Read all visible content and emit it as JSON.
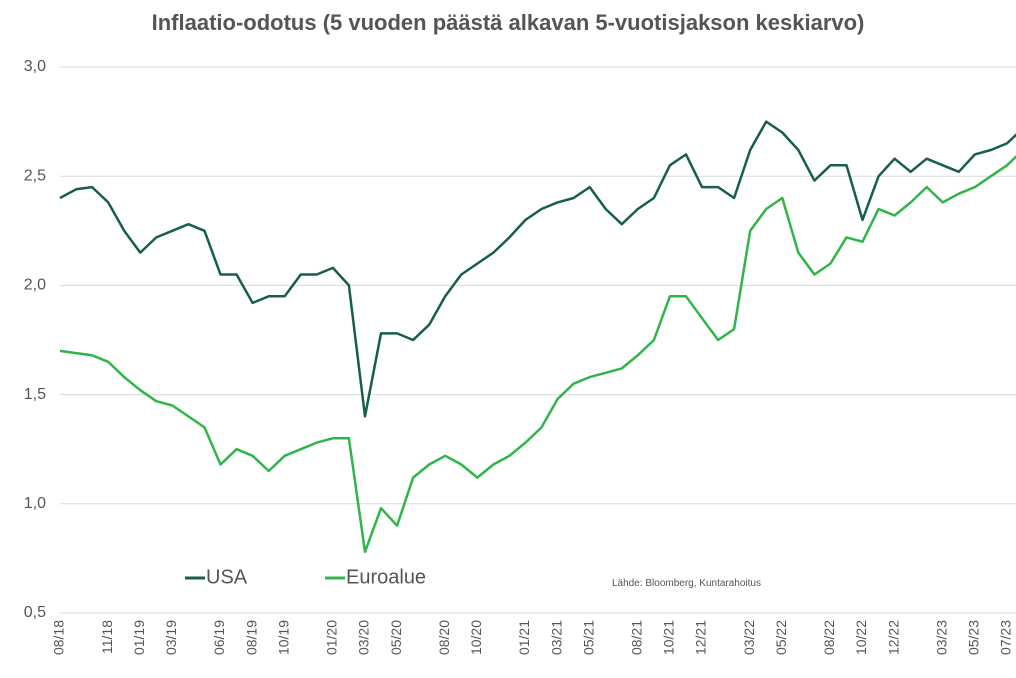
{
  "chart_data": {
    "type": "line",
    "title": "Inflaatio-odotus (5 vuoden päästä alkavan 5-vuotisjakson keskiarvo)",
    "source": "Lähde: Bloomberg, Kuntarahoitus",
    "x": [
      "08/18",
      "09/18",
      "10/18",
      "11/18",
      "12/18",
      "01/19",
      "02/19",
      "03/19",
      "04/19",
      "05/19",
      "06/19",
      "07/19",
      "08/19",
      "09/19",
      "10/19",
      "11/19",
      "12/19",
      "01/20",
      "02/20",
      "03/20",
      "04/20",
      "05/20",
      "06/20",
      "07/20",
      "08/20",
      "09/20",
      "10/20",
      "11/20",
      "12/20",
      "01/21",
      "02/21",
      "03/21",
      "04/21",
      "05/21",
      "06/21",
      "07/21",
      "08/21",
      "09/21",
      "10/21",
      "11/21",
      "12/21",
      "01/22",
      "02/22",
      "03/22",
      "04/22",
      "05/22",
      "06/22",
      "07/22",
      "08/22",
      "09/22",
      "10/22",
      "11/22",
      "12/22",
      "01/23",
      "02/23",
      "03/23",
      "04/23",
      "05/23",
      "06/23",
      "07/23",
      "08/23"
    ],
    "xticks": [
      "08/18",
      "11/18",
      "01/19",
      "03/19",
      "06/19",
      "08/19",
      "10/19",
      "01/20",
      "03/20",
      "05/20",
      "08/20",
      "10/20",
      "01/21",
      "03/21",
      "05/21",
      "08/21",
      "10/21",
      "12/21",
      "03/22",
      "05/22",
      "08/22",
      "10/22",
      "12/22",
      "03/23",
      "05/23",
      "07/23"
    ],
    "series": [
      {
        "name": "USA",
        "color": "#175e4c",
        "values": [
          2.4,
          2.44,
          2.45,
          2.38,
          2.25,
          2.15,
          2.22,
          2.25,
          2.28,
          2.25,
          2.05,
          2.05,
          1.92,
          1.95,
          1.95,
          2.05,
          2.05,
          2.08,
          2.0,
          1.4,
          1.78,
          1.78,
          1.75,
          1.82,
          1.95,
          2.05,
          2.1,
          2.15,
          2.22,
          2.3,
          2.35,
          2.38,
          2.4,
          2.45,
          2.35,
          2.28,
          2.35,
          2.4,
          2.55,
          2.6,
          2.45,
          2.45,
          2.4,
          2.62,
          2.75,
          2.7,
          2.62,
          2.48,
          2.55,
          2.55,
          2.3,
          2.5,
          2.58,
          2.52,
          2.58,
          2.55,
          2.52,
          2.6,
          2.62,
          2.65,
          2.72
        ]
      },
      {
        "name": "Euroalue",
        "color": "#2fb548",
        "values": [
          1.7,
          1.69,
          1.68,
          1.65,
          1.58,
          1.52,
          1.47,
          1.45,
          1.4,
          1.35,
          1.18,
          1.25,
          1.22,
          1.15,
          1.22,
          1.25,
          1.28,
          1.3,
          1.3,
          0.78,
          0.98,
          0.9,
          1.12,
          1.18,
          1.22,
          1.18,
          1.12,
          1.18,
          1.22,
          1.28,
          1.35,
          1.48,
          1.55,
          1.58,
          1.6,
          1.62,
          1.68,
          1.75,
          1.95,
          1.95,
          1.85,
          1.75,
          1.8,
          2.25,
          2.35,
          2.4,
          2.15,
          2.05,
          2.1,
          2.22,
          2.2,
          2.35,
          2.32,
          2.38,
          2.45,
          2.38,
          2.42,
          2.45,
          2.5,
          2.55,
          2.62
        ]
      }
    ],
    "ylim": [
      0.5,
      3.0
    ],
    "yticks": [
      {
        "value": 0.5,
        "label": "0,5"
      },
      {
        "value": 1.0,
        "label": "1,0"
      },
      {
        "value": 1.5,
        "label": "1,5"
      },
      {
        "value": 2.0,
        "label": "2,0"
      },
      {
        "value": 2.5,
        "label": "2,5"
      },
      {
        "value": 3.0,
        "label": "3,0"
      }
    ],
    "grid": true
  }
}
